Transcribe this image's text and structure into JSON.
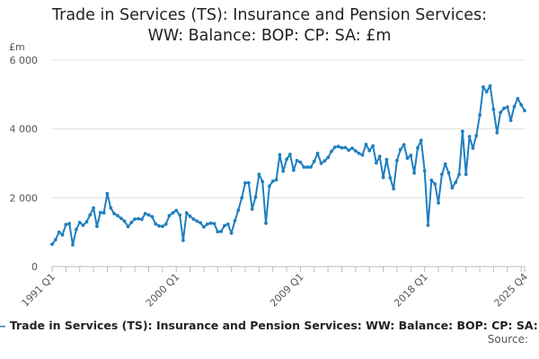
{
  "chart_data": {
    "type": "line",
    "title_lines": [
      "Trade in Services (TS): Insurance and Pension Services:",
      "WW: Balance: BOP: CP: SA: £m"
    ],
    "ylabel": "£m",
    "ylim": [
      0,
      6000
    ],
    "yticks": [
      0,
      2000,
      4000,
      6000
    ],
    "ytick_labels": [
      "0",
      "2 000",
      "4 000",
      "6 000"
    ],
    "xtick_labels": [
      "1991 Q1",
      "2000 Q1",
      "2009 Q1",
      "2018 Q1",
      "2025 Q4"
    ],
    "grid": "horizontal",
    "legend": "bottom",
    "color": "#1f7fbf",
    "series": [
      {
        "name": "Trade in Services (TS): Insurance and Pension Services: WW: Balance: BOP: CP: SA: £m",
        "values": [
          650,
          780,
          1000,
          920,
          1220,
          1250,
          630,
          1080,
          1280,
          1200,
          1300,
          1500,
          1700,
          1170,
          1570,
          1560,
          2120,
          1700,
          1540,
          1480,
          1400,
          1320,
          1160,
          1280,
          1380,
          1390,
          1370,
          1540,
          1500,
          1450,
          1240,
          1180,
          1170,
          1230,
          1480,
          1560,
          1630,
          1500,
          760,
          1560,
          1460,
          1380,
          1320,
          1270,
          1150,
          1230,
          1260,
          1250,
          1010,
          1020,
          1190,
          1230,
          970,
          1330,
          1640,
          2000,
          2430,
          2430,
          1670,
          2020,
          2680,
          2470,
          1260,
          2340,
          2480,
          2520,
          3250,
          2770,
          3120,
          3260,
          2800,
          3080,
          3030,
          2890,
          2890,
          2890,
          3060,
          3290,
          3000,
          3070,
          3170,
          3350,
          3470,
          3490,
          3450,
          3460,
          3380,
          3440,
          3360,
          3290,
          3240,
          3550,
          3370,
          3510,
          3010,
          3200,
          2590,
          3110,
          2580,
          2260,
          3080,
          3400,
          3540,
          3150,
          3230,
          2720,
          3450,
          3670,
          2780,
          1200,
          2510,
          2400,
          1850,
          2680,
          2980,
          2720,
          2290,
          2450,
          2680,
          3930,
          2680,
          3780,
          3440,
          3800,
          4400,
          5220,
          5080,
          5250,
          4570,
          3890,
          4480,
          4600,
          4640,
          4250,
          4650,
          4880,
          4700,
          4530
        ]
      }
    ],
    "source_label": "Source:"
  }
}
